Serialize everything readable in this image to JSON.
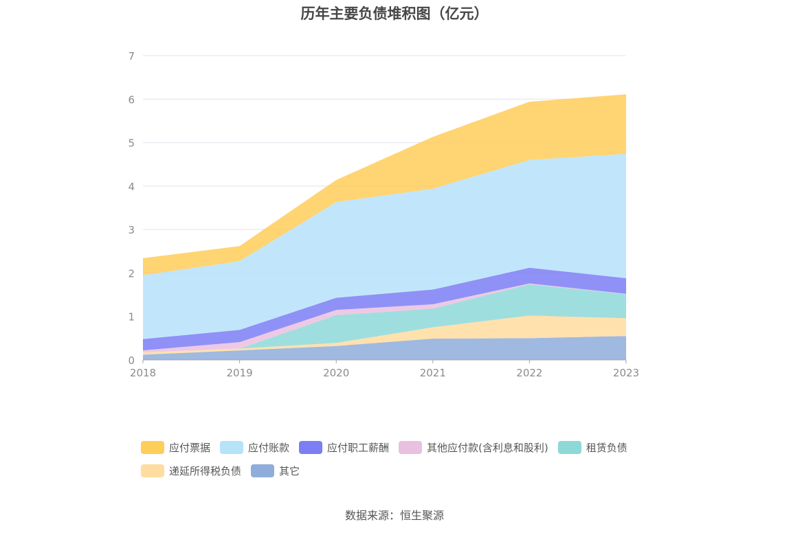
{
  "title": "历年主要负债堆积图（亿元）",
  "source": "数据来源：恒生聚源",
  "colors": {
    "accent": "#ffc53d",
    "grid": "#e3e3ec",
    "axis": "#a0a3ad",
    "tick_text": "#8b8b8b"
  },
  "chart_data": {
    "type": "area",
    "stacked": true,
    "x": [
      "2018",
      "2019",
      "2020",
      "2021",
      "2022",
      "2023"
    ],
    "ylim": [
      0,
      7
    ],
    "yticks": [
      "0",
      "1",
      "2",
      "3",
      "4",
      "5",
      "6",
      "7"
    ],
    "grid": true,
    "legend_position": "bottom",
    "series": [
      {
        "name": "其它",
        "color": "#8eaddb",
        "values": [
          0.12,
          0.22,
          0.32,
          0.49,
          0.5,
          0.55
        ]
      },
      {
        "name": "递延所得税负债",
        "color": "#ffdca0",
        "values": [
          0.05,
          0.04,
          0.07,
          0.26,
          0.52,
          0.41
        ]
      },
      {
        "name": "租赁负债",
        "color": "#8ed8d8",
        "values": [
          0.0,
          0.0,
          0.64,
          0.43,
          0.72,
          0.55
        ]
      },
      {
        "name": "其他应付款(含利息和股利)",
        "color": "#ebbfdf",
        "values": [
          0.05,
          0.15,
          0.12,
          0.1,
          0.02,
          0.01
        ]
      },
      {
        "name": "应付职工薪酬",
        "color": "#7b7ef5",
        "values": [
          0.26,
          0.28,
          0.28,
          0.34,
          0.36,
          0.36
        ]
      },
      {
        "name": "应付账款",
        "color": "#b6e2fa",
        "values": [
          1.47,
          1.58,
          2.2,
          2.32,
          2.48,
          2.86
        ]
      },
      {
        "name": "应付票据",
        "color": "#ffcd5a",
        "values": [
          0.39,
          0.35,
          0.51,
          1.19,
          1.34,
          1.37
        ]
      }
    ]
  },
  "legend_order": [
    "应付票据",
    "应付账款",
    "应付职工薪酬",
    "其他应付款(含利息和股利)",
    "租赁负债",
    "递延所得税负债",
    "其它"
  ]
}
